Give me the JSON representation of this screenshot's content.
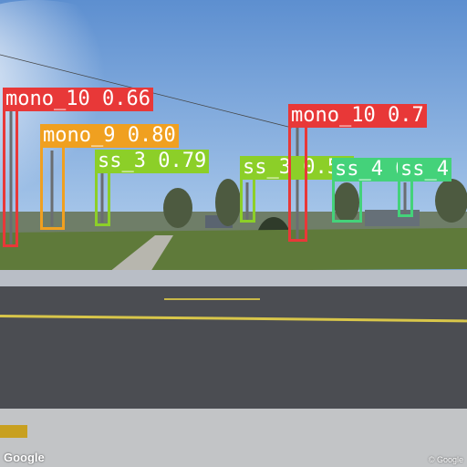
{
  "watermark": {
    "left": "Google",
    "right": "© Google"
  },
  "colors": {
    "mono_10": "#e83838",
    "mono_9": "#f0a020",
    "ss_3": "#8ccf28",
    "ss_4": "#44d27a"
  },
  "detections": [
    {
      "name": "detection-mono-10-left",
      "label": "mono_10 0.66",
      "cls": "mono_10"
    },
    {
      "name": "detection-mono-9",
      "label": "mono_9 0.80",
      "cls": "mono_9"
    },
    {
      "name": "detection-ss-3-left",
      "label": "ss_3 0.79",
      "cls": "ss_3"
    },
    {
      "name": "detection-ss-3-middle",
      "label": "ss_3 0.54",
      "cls": "ss_3"
    },
    {
      "name": "detection-mono-10-right",
      "label": "mono_10 0.7",
      "cls": "mono_10"
    },
    {
      "name": "detection-ss-4-middle",
      "label": "ss_4 0.46",
      "cls": "ss_4"
    },
    {
      "name": "detection-ss-4-right",
      "label": "ss_4",
      "cls": "ss_4"
    }
  ]
}
